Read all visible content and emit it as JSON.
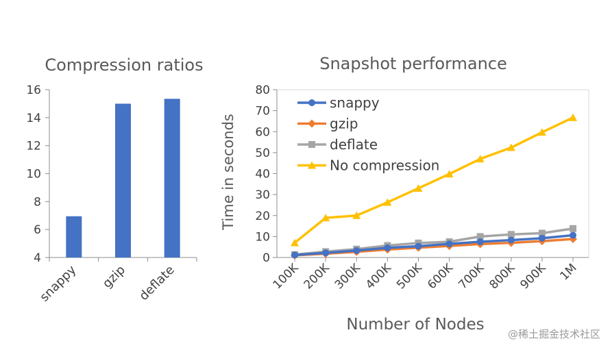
{
  "chart_data": [
    {
      "type": "bar",
      "title": "Compression ratios",
      "categories": [
        "snappy",
        "gzip",
        "deflate"
      ],
      "values": [
        6.95,
        15.0,
        15.35
      ],
      "ylim": [
        4,
        16
      ],
      "yticks": [
        "4",
        "6",
        "8",
        "10",
        "12",
        "14",
        "16"
      ],
      "xlabel": "",
      "ylabel": "",
      "color": "#4472c4"
    },
    {
      "type": "line",
      "title": "Snapshot performance",
      "xlabel": "Number of Nodes",
      "ylabel": "Time in seconds",
      "categories": [
        "100K",
        "200K",
        "300K",
        "400K",
        "500K",
        "600K",
        "700K",
        "800K",
        "900K",
        "1M"
      ],
      "ylim": [
        0,
        80
      ],
      "yticks": [
        "0",
        "10",
        "20",
        "30",
        "40",
        "50",
        "60",
        "70",
        "80"
      ],
      "legend_position": "top-left",
      "series": [
        {
          "name": "snappy",
          "color": "#4472c4",
          "marker": "circle",
          "values": [
            1.2,
            2.2,
            3.3,
            4.6,
            5.4,
            6.5,
            7.5,
            8.3,
            9.2,
            10.6
          ]
        },
        {
          "name": "gzip",
          "color": "#ed7d31",
          "marker": "diamond",
          "values": [
            1.0,
            1.8,
            2.7,
            3.8,
            4.7,
            5.5,
            6.4,
            7.0,
            7.8,
            8.8
          ]
        },
        {
          "name": "deflate",
          "color": "#a5a5a5",
          "marker": "square",
          "values": [
            1.4,
            2.8,
            4.0,
            5.7,
            6.9,
            7.5,
            10.0,
            11.0,
            11.6,
            13.8
          ]
        },
        {
          "name": "No compression",
          "color": "#ffc000",
          "marker": "triangle",
          "values": [
            7.0,
            18.9,
            20.0,
            26.3,
            33.0,
            39.8,
            47.0,
            52.4,
            59.7,
            66.7
          ]
        }
      ]
    }
  ],
  "watermark": "@稀土掘金技术社区"
}
